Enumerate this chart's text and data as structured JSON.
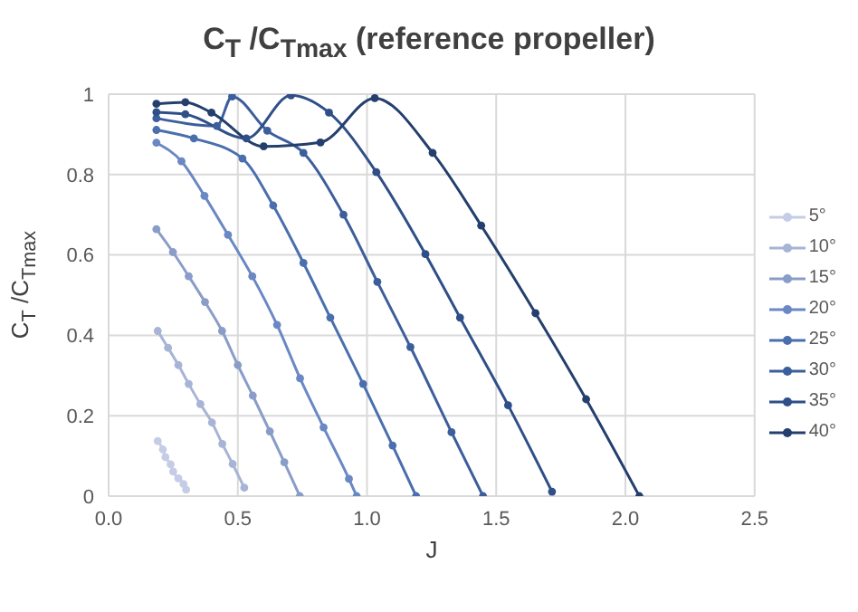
{
  "chart_data": {
    "type": "line",
    "title": "C$_{T}$ /C$_{Tmax}$ (reference propeller)",
    "xlabel": "J",
    "ylabel": "C$_{T}$ /C$_{Tmax}$",
    "xlim": [
      0,
      2.5
    ],
    "xticks": [
      {
        "value": 0,
        "label": "0.0"
      },
      {
        "value": 0.5,
        "label": "0.5"
      },
      {
        "value": 1,
        "label": "1.0"
      },
      {
        "value": 1.5,
        "label": "1.5"
      },
      {
        "value": 2,
        "label": "2.0"
      },
      {
        "value": 2.5,
        "label": "2.5"
      }
    ],
    "ylim": [
      0,
      1
    ],
    "yticks": [
      0,
      0.2,
      0.4,
      0.6,
      0.8,
      1
    ],
    "grid": true,
    "legend": "right",
    "marker": "circle",
    "line_style": "solid",
    "series": [
      {
        "name": "5°",
        "color": "#c5cde6",
        "x": [
          0.19,
          0.21,
          0.22,
          0.24,
          0.25,
          0.27,
          0.29,
          0.3
        ],
        "values": [
          0.137,
          0.116,
          0.097,
          0.079,
          0.061,
          0.044,
          0.03,
          0.016
        ]
      },
      {
        "name": "10°",
        "color": "#a8b4d6",
        "x": [
          0.19,
          0.23,
          0.27,
          0.31,
          0.355,
          0.4,
          0.44,
          0.48,
          0.525
        ],
        "values": [
          0.411,
          0.369,
          0.326,
          0.279,
          0.229,
          0.183,
          0.13,
          0.08,
          0.021
        ]
      },
      {
        "name": "15°",
        "color": "#8a9dc8",
        "x": [
          0.185,
          0.249,
          0.31,
          0.373,
          0.439,
          0.5,
          0.558,
          0.624,
          0.68,
          0.74
        ],
        "values": [
          0.664,
          0.607,
          0.547,
          0.483,
          0.411,
          0.326,
          0.25,
          0.161,
          0.084,
          0
        ]
      },
      {
        "name": "20°",
        "color": "#6a88c4",
        "x": [
          0.185,
          0.282,
          0.371,
          0.462,
          0.556,
          0.652,
          0.741,
          0.832,
          0.93,
          0.96
        ],
        "values": [
          0.879,
          0.833,
          0.747,
          0.65,
          0.547,
          0.426,
          0.293,
          0.171,
          0.043,
          0
        ]
      },
      {
        "name": "25°",
        "color": "#4a6fae",
        "x": [
          0.185,
          0.33,
          0.518,
          0.637,
          0.754,
          0.858,
          0.985,
          1.099,
          1.19
        ],
        "values": [
          0.911,
          0.89,
          0.84,
          0.723,
          0.58,
          0.444,
          0.279,
          0.126,
          0
        ]
      },
      {
        "name": "30°",
        "color": "#3d5e9c",
        "x": [
          0.185,
          0.419,
          0.478,
          0.614,
          0.754,
          0.909,
          1.04,
          1.168,
          1.327,
          1.449
        ],
        "values": [
          0.94,
          0.921,
          0.994,
          0.909,
          0.854,
          0.7,
          0.533,
          0.371,
          0.159,
          0
        ]
      },
      {
        "name": "35°",
        "color": "#2f4f88",
        "x": [
          0.185,
          0.297,
          0.533,
          0.706,
          0.853,
          1.036,
          1.226,
          1.36,
          1.546,
          1.716
        ],
        "values": [
          0.955,
          0.95,
          0.89,
          0.997,
          0.954,
          0.806,
          0.602,
          0.444,
          0.226,
          0.011
        ]
      },
      {
        "name": "40°",
        "color": "#243f6e",
        "x": [
          0.185,
          0.297,
          0.398,
          0.6,
          0.82,
          1.03,
          1.254,
          1.442,
          1.652,
          1.848,
          2.054
        ],
        "values": [
          0.976,
          0.98,
          0.954,
          0.87,
          0.88,
          0.99,
          0.854,
          0.673,
          0.455,
          0.241,
          0
        ]
      }
    ]
  }
}
